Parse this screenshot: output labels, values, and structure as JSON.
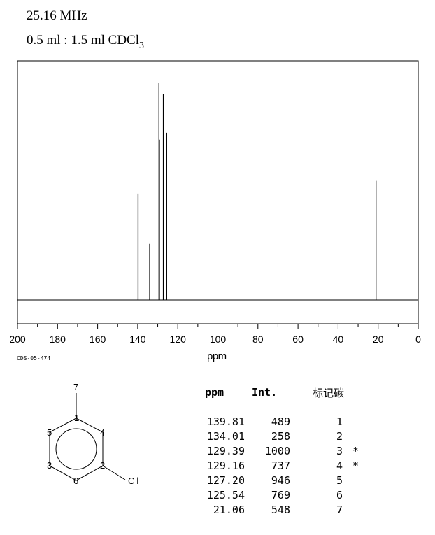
{
  "header": {
    "frequency": "25.16 MHz",
    "solvent_prefix": "0.5 ml : 1.5 ml CDCl",
    "solvent_sub": "3"
  },
  "spectrum_code": "CDS-05-474",
  "chart_data": {
    "type": "line",
    "title": "",
    "xlabel": "ppm",
    "ylabel": "",
    "xlim": [
      200,
      0
    ],
    "x_reversed": true,
    "x_ticks": [
      200,
      180,
      160,
      140,
      120,
      100,
      80,
      60,
      40,
      20,
      0
    ],
    "grid": false,
    "peaks": [
      {
        "ppm": 139.81,
        "intensity": 489
      },
      {
        "ppm": 134.01,
        "intensity": 258
      },
      {
        "ppm": 129.39,
        "intensity": 1000
      },
      {
        "ppm": 129.16,
        "intensity": 737
      },
      {
        "ppm": 127.2,
        "intensity": 946
      },
      {
        "ppm": 125.54,
        "intensity": 769
      },
      {
        "ppm": 21.06,
        "intensity": 548
      }
    ]
  },
  "table": {
    "headers": {
      "ppm": "ppm",
      "int": "Int.",
      "label": "标记碳"
    },
    "rows": [
      {
        "ppm": "139.81",
        "int": "489",
        "label": "1",
        "star": ""
      },
      {
        "ppm": "134.01",
        "int": "258",
        "label": "2",
        "star": ""
      },
      {
        "ppm": "129.39",
        "int": "1000",
        "label": "3",
        "star": "*"
      },
      {
        "ppm": "129.16",
        "int": "737",
        "label": "4",
        "star": "*"
      },
      {
        "ppm": "127.20",
        "int": "946",
        "label": "5",
        "star": ""
      },
      {
        "ppm": "125.54",
        "int": "769",
        "label": "6",
        "star": ""
      },
      {
        "ppm": "21.06",
        "int": "548",
        "label": "7",
        "star": ""
      }
    ]
  },
  "structure": {
    "atom_labels": [
      "7",
      "1",
      "4",
      "5",
      "3",
      "2",
      "6"
    ],
    "substituent": "Cl"
  }
}
